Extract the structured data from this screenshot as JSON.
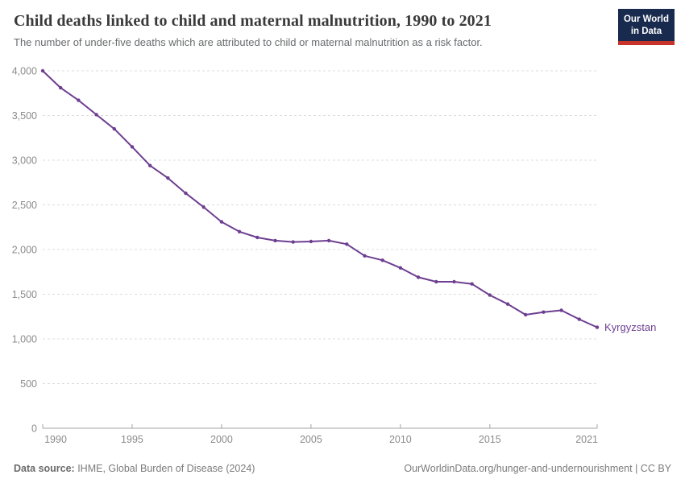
{
  "header": {
    "title": "Child deaths linked to child and maternal malnutrition, 1990 to 2021",
    "subtitle": "The number of under-five deaths which are attributed to child or maternal malnutrition as a risk factor.",
    "logo": {
      "line1": "Our World",
      "line2": "in Data",
      "bg_color": "#182a4e",
      "accent_color": "#c5332b"
    }
  },
  "chart_data": {
    "type": "line",
    "title": "Child deaths linked to child and maternal malnutrition, 1990 to 2021",
    "x": [
      1990,
      1991,
      1992,
      1993,
      1994,
      1995,
      1996,
      1997,
      1998,
      1999,
      2000,
      2001,
      2002,
      2003,
      2004,
      2005,
      2006,
      2007,
      2008,
      2009,
      2010,
      2011,
      2012,
      2013,
      2014,
      2015,
      2016,
      2017,
      2018,
      2019,
      2020,
      2021
    ],
    "series": [
      {
        "name": "Kyrgyzstan",
        "color": "#6d3e91",
        "values": [
          4000,
          3810,
          3670,
          3510,
          3350,
          3150,
          2940,
          2800,
          2630,
          2475,
          2310,
          2200,
          2135,
          2100,
          2085,
          2090,
          2100,
          2060,
          1930,
          1880,
          1795,
          1690,
          1640,
          1640,
          1615,
          1490,
          1390,
          1270,
          1300,
          1320,
          1220,
          1130
        ]
      }
    ],
    "xlabel": "",
    "ylabel": "",
    "xlim": [
      1990,
      2021
    ],
    "ylim": [
      0,
      4000
    ],
    "ytick_step": 500,
    "xticks": [
      1990,
      1995,
      2000,
      2005,
      2010,
      2015,
      2021
    ],
    "grid": "horizontal-dashed",
    "legend": "end-of-line-label",
    "colors": {
      "grid": "#dcdcdc",
      "axis": "#a3a3a3",
      "axis_text": "#8b8b8b"
    }
  },
  "footer": {
    "data_source_label": "Data source:",
    "data_source_value": " IHME, Global Burden of Disease (2024)",
    "attribution": "OurWorldinData.org/hunger-and-undernourishment | CC BY"
  }
}
